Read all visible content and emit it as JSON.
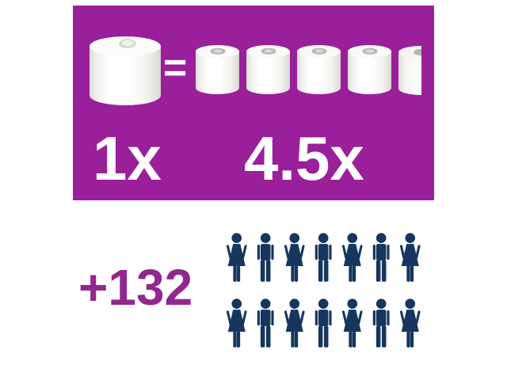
{
  "comparison_card": {
    "background_color": "#9A1F9A",
    "text_color": "#FFFFFF",
    "large_roll_icon": "toilet-paper-roll-large",
    "large_roll_label": "1x",
    "equals_sign": "=",
    "small_roll_icon": "toilet-paper-roll-small",
    "small_rolls_label": "4.5x",
    "small_rolls_full_count": 4,
    "small_rolls_half_count": 1
  },
  "people_section": {
    "count_label": "+132",
    "count_color": "#92278F",
    "person_icon_color": "#14365F",
    "rows": [
      [
        "woman",
        "man",
        "woman",
        "man",
        "woman",
        "man",
        "woman"
      ],
      [
        "woman",
        "man",
        "woman",
        "man",
        "woman",
        "man",
        "woman"
      ]
    ]
  },
  "chart_data": {
    "type": "pictograph",
    "title": "",
    "comparison": {
      "left_item": {
        "label": "1x",
        "icon": "large-toilet-roll",
        "count": 1
      },
      "relation": "=",
      "right_item": {
        "label": "4.5x",
        "icon": "small-toilet-roll",
        "count": 4.5,
        "full_icons": 4,
        "partial_icons": 1
      }
    },
    "pictograph": {
      "label": "+132",
      "value": 132,
      "icon": "person",
      "icon_count": 14,
      "rows": 2,
      "icons_per_row": 7,
      "icon_pattern": "alternating woman/man starting and ending with woman"
    }
  }
}
